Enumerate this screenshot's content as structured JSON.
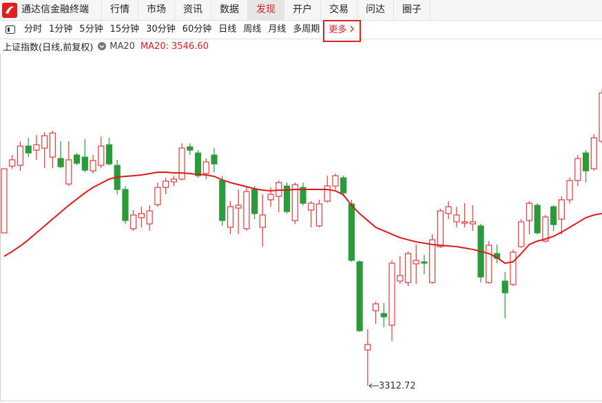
{
  "menu": {
    "items": [
      "通达信金融终端",
      "行情",
      "市场",
      "资讯",
      "数据",
      "发现",
      "开户",
      "交易",
      "问达",
      "圈子"
    ],
    "active": 5
  },
  "toolbar": {
    "items": [
      "分时",
      "1分钟",
      "5分钟",
      "15分钟",
      "30分钟",
      "60分钟",
      "日线",
      "周线",
      "月线",
      "多周期",
      "更多"
    ],
    "highlighted": 10
  },
  "chart_data": {
    "type": "candlestick",
    "title": "上证指数(日线,前复权)",
    "open": [
      3520.4,
      3611.1,
      3612.1,
      3638.3,
      3632.7,
      3635.5,
      3623.3,
      3621.4,
      3586.8,
      3626.1,
      3623.3,
      3604.6,
      3612.1,
      3640.1,
      3612.1,
      3579.3,
      3526.0,
      3541.0,
      3532.6,
      3558.8,
      3582.1,
      3589.6,
      3593.4,
      3637.3,
      3628.9,
      3600.9,
      3626.1,
      3591.5,
      3527.9,
      3554.1,
      3526.0,
      3579.3,
      3527.9,
      3565.3,
      3570.0,
      3584.0,
      3537.2,
      3582.1,
      3551.3,
      3529.8,
      3563.4,
      3584.0,
      3595.2,
      3559.7,
      3481.1,
      3361.4,
      3414.7,
      3410.9,
      3395.0,
      3454.9,
      3453.0,
      3478.3,
      3481.1,
      3453.0,
      3501.7,
      3546.6,
      3535.4,
      3533.5,
      3532.6,
      3529.8,
      3453.0,
      3492.3,
      3454.9,
      3450.2,
      3501.7,
      3537.2,
      3557.8,
      3509.2,
      3555.9,
      3539.1,
      3565.3,
      3591.5,
      3628.9,
      3607.4,
      3644.8
    ],
    "high": [
      3607.4,
      3626.1,
      3644.8,
      3649.5,
      3653.2,
      3657.0,
      3658.9,
      3644.8,
      3644.8,
      3628.9,
      3647.6,
      3626.1,
      3651.4,
      3649.5,
      3619.6,
      3584.0,
      3551.3,
      3555.9,
      3557.8,
      3588.7,
      3595.2,
      3598.0,
      3642.0,
      3642.0,
      3632.7,
      3621.4,
      3635.5,
      3598.0,
      3563.4,
      3579.3,
      3582.1,
      3584.0,
      3572.8,
      3582.1,
      3591.5,
      3588.7,
      3588.7,
      3588.7,
      3563.4,
      3565.3,
      3598.0,
      3600.9,
      3598.0,
      3565.3,
      3483.0,
      3389.4,
      3426.9,
      3425.0,
      3483.0,
      3488.6,
      3495.1,
      3504.5,
      3490.5,
      3518.5,
      3553.1,
      3563.4,
      3555.9,
      3560.6,
      3557.8,
      3532.6,
      3509.2,
      3504.5,
      3467.1,
      3497.9,
      3539.1,
      3563.4,
      3560.6,
      3544.7,
      3557.8,
      3570.0,
      3595.2,
      3626.1,
      3632.7,
      3654.2,
      3715.0
    ],
    "low": [
      3520.4,
      3607.4,
      3604.6,
      3623.3,
      3619.6,
      3608.3,
      3608.3,
      3608.3,
      3584.0,
      3612.1,
      3602.7,
      3600.9,
      3608.3,
      3612.1,
      3572.8,
      3532.6,
      3523.2,
      3527.9,
      3523.2,
      3555.9,
      3572.8,
      3584.0,
      3591.5,
      3626.1,
      3595.2,
      3593.4,
      3602.7,
      3529.8,
      3518.5,
      3518.5,
      3523.2,
      3539.1,
      3501.7,
      3555.9,
      3548.5,
      3546.6,
      3532.6,
      3557.8,
      3527.9,
      3527.9,
      3561.6,
      3579.3,
      3570.0,
      3481.1,
      3385.7,
      3312.72,
      3396.9,
      3392.2,
      3373.5,
      3451.2,
      3448.4,
      3451.2,
      3464.3,
      3451.2,
      3499.8,
      3539.1,
      3527.9,
      3527.9,
      3523.2,
      3453.0,
      3451.2,
      3479.2,
      3404.4,
      3448.4,
      3499.8,
      3518.5,
      3518.5,
      3507.3,
      3523.2,
      3518.5,
      3560.6,
      3584.0,
      3588.7,
      3604.6,
      3642.0
    ],
    "close": [
      3607.4,
      3619.6,
      3638.3,
      3628.9,
      3640.1,
      3652.3,
      3656.0,
      3610.2,
      3619.6,
      3614.9,
      3605.5,
      3618.6,
      3638.3,
      3614.0,
      3579.3,
      3537.2,
      3544.7,
      3546.6,
      3550.3,
      3582.1,
      3590.6,
      3593.4,
      3635.5,
      3632.7,
      3598.0,
      3616.8,
      3614.0,
      3537.2,
      3555.9,
      3557.8,
      3576.5,
      3546.6,
      3544.7,
      3572.8,
      3588.7,
      3549.4,
      3585.9,
      3560.6,
      3560.6,
      3559.7,
      3584.0,
      3598.0,
      3574.7,
      3483.0,
      3387.6,
      3368.8,
      3424.0,
      3406.3,
      3479.2,
      3462.4,
      3492.3,
      3483.0,
      3479.2,
      3511.0,
      3550.3,
      3555.9,
      3544.7,
      3535.4,
      3535.4,
      3460.5,
      3503.6,
      3485.8,
      3439.0,
      3494.2,
      3535.4,
      3560.6,
      3520.4,
      3541.9,
      3531.6,
      3565.3,
      3591.5,
      3621.4,
      3604.6,
      3649.5,
      3710.3
    ],
    "series": [
      {
        "name": "MA20",
        "color": "#e01818",
        "value_label": "MA20: 3546.60",
        "values": [
          3488.6,
          3495.1,
          3502.6,
          3511.0,
          3520.4,
          3529.8,
          3539.1,
          3548.5,
          3557.8,
          3566.2,
          3574.7,
          3582.1,
          3587.8,
          3593.4,
          3596.2,
          3597.1,
          3598.0,
          3599.0,
          3600.9,
          3602.7,
          3602.7,
          3601.8,
          3601.8,
          3600.9,
          3599.9,
          3599.0,
          3597.1,
          3592.4,
          3588.7,
          3585.9,
          3583.1,
          3580.3,
          3578.4,
          3577.5,
          3578.4,
          3578.4,
          3579.3,
          3579.3,
          3579.3,
          3579.3,
          3579.3,
          3577.5,
          3571.9,
          3557.8,
          3546.6,
          3537.2,
          3527.9,
          3523.2,
          3518.5,
          3513.9,
          3511.0,
          3508.2,
          3506.4,
          3504.5,
          3503.6,
          3502.6,
          3501.7,
          3499.8,
          3497.9,
          3495.1,
          3492.3,
          3486.7,
          3479.2,
          3481.1,
          3492.3,
          3504.5,
          3509.2,
          3512.0,
          3515.7,
          3521.3,
          3527.9,
          3534.4,
          3541.0,
          3544.7,
          3546.6
        ]
      }
    ],
    "up_color": "#e8383d",
    "down_color": "#2a9a3a",
    "ylim": [
      3294.0,
      3761.8
    ]
  }
}
